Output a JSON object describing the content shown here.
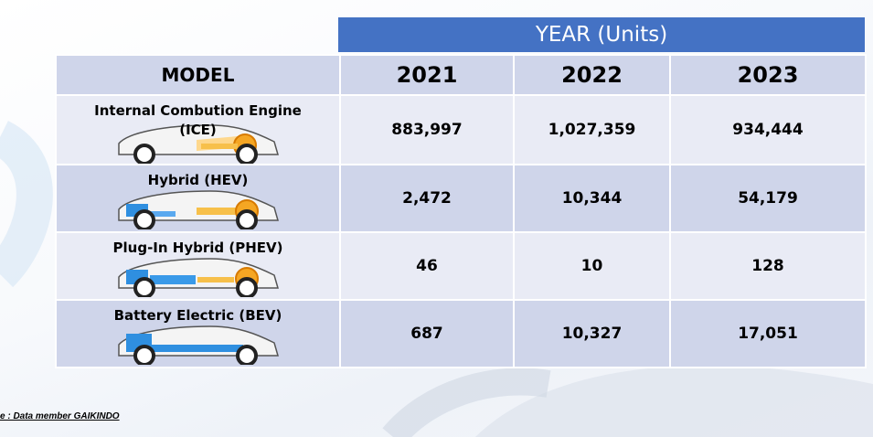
{
  "header": {
    "year_label": "YEAR (Units)"
  },
  "table": {
    "model_header": "MODEL",
    "years": [
      "2021",
      "2022",
      "2023"
    ],
    "rows": [
      {
        "model_line1": "Internal Combution Engine",
        "model_line2": "(ICE)",
        "car_icon": "ice-car-icon",
        "values": [
          "883,997",
          "1,027,359",
          "934,444"
        ]
      },
      {
        "model_line1": "Hybrid (HEV)",
        "model_line2": "",
        "car_icon": "hybrid-car-icon",
        "values": [
          "2,472",
          "10,344",
          "54,179"
        ]
      },
      {
        "model_line1": "Plug-In Hybrid (PHEV)",
        "model_line2": "",
        "car_icon": "plugin-hybrid-car-icon",
        "values": [
          "46",
          "10",
          "128"
        ]
      },
      {
        "model_line1": "Battery Electric (BEV)",
        "model_line2": "",
        "car_icon": "battery-electric-car-icon",
        "values": [
          "687",
          "10,327",
          "17,051"
        ]
      }
    ]
  },
  "footer": {
    "source": "e : Data member GAIKINDO"
  },
  "colors": {
    "header_blue": "#4472c4",
    "row_light": "#e9ebf5",
    "row_dark": "#cfd5ea",
    "engine_orange": "#f5a623",
    "battery_blue": "#2f8fe0"
  }
}
